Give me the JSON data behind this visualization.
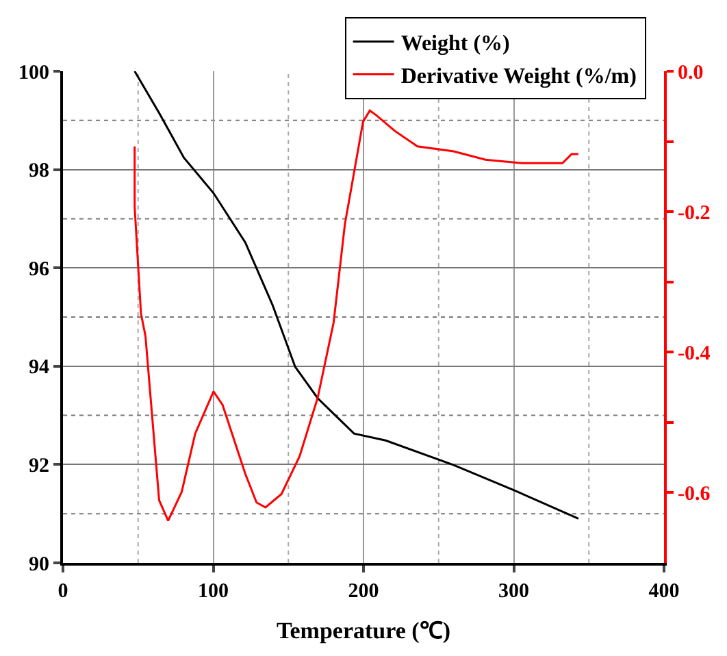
{
  "chart_data": {
    "type": "line",
    "xlabel": "Temperature (℃)",
    "x": [
      47.7,
      64,
      80.5,
      100.2,
      121.3,
      139.4,
      154.5,
      169.5,
      181.6,
      193.7,
      214.8,
      260,
      299.3,
      343
    ],
    "series": [
      {
        "name": "Weight (%)",
        "color": "#000000",
        "values": [
          100.0,
          99.15,
          98.24,
          97.52,
          96.52,
          95.25,
          93.99,
          93.35,
          92.99,
          92.63,
          92.49,
          91.99,
          91.49,
          90.9
        ]
      },
      {
        "name": "Derivative Weight (%/m)",
        "color": "#ff0000",
        "axis": "y2",
        "x": [
          47.7,
          47.7,
          51.9,
          54.9,
          64,
          70,
          79,
          88,
          100.2,
          106.2,
          121.3,
          128.8,
          134.8,
          145.4,
          157.5,
          169.5,
          180.1,
          187.6,
          199.7,
          204.2,
          208.7,
          220.8,
          235.9,
          260,
          281.2,
          305.3,
          332.4,
          338.5,
          343
        ],
        "values": [
          -0.107,
          -0.193,
          -0.345,
          -0.377,
          -0.611,
          -0.64,
          -0.599,
          -0.516,
          -0.456,
          -0.475,
          -0.573,
          -0.614,
          -0.621,
          -0.602,
          -0.548,
          -0.465,
          -0.358,
          -0.218,
          -0.072,
          -0.056,
          -0.063,
          -0.085,
          -0.107,
          -0.114,
          -0.126,
          -0.131,
          -0.131,
          -0.118,
          -0.118
        ]
      }
    ],
    "xlim": [
      0,
      400
    ],
    "xticks": [
      0,
      100,
      200,
      300,
      400
    ],
    "ylim": [
      90,
      100
    ],
    "yticks": [
      90,
      92,
      94,
      96,
      98,
      100
    ],
    "y2lim": [
      -0.7,
      0
    ],
    "y2ticks": [
      {
        "value": 0,
        "label": "0.0"
      },
      {
        "value": -0.1,
        "label": null
      },
      -0.2,
      {
        "value": -0.3,
        "label": null
      },
      -0.4,
      {
        "value": -0.5,
        "label": null
      },
      -0.6
    ],
    "grid": true,
    "legend": "top right",
    "marker": "none",
    "line_style": "solid"
  }
}
